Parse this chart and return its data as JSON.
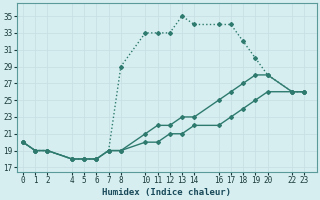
{
  "title": "",
  "xlabel": "Humidex (Indice chaleur)",
  "bg_color": "#d6eef0",
  "grid_color": "#c8e0e4",
  "line_color": "#2e7a6e",
  "xticks": [
    0,
    1,
    2,
    4,
    5,
    6,
    7,
    8,
    10,
    11,
    12,
    13,
    14,
    16,
    17,
    18,
    19,
    20,
    22,
    23
  ],
  "yticks": [
    17,
    19,
    21,
    23,
    25,
    27,
    29,
    31,
    33,
    35
  ],
  "xlim": [
    -0.5,
    24.0
  ],
  "ylim": [
    16.5,
    36.5
  ],
  "line1_x": [
    0,
    1,
    2,
    4,
    5,
    6,
    7,
    8,
    10,
    11,
    12,
    13,
    14,
    16,
    17,
    18,
    19,
    20,
    22,
    23
  ],
  "line1_y": [
    20,
    19,
    19,
    18,
    18,
    18,
    19,
    29,
    33,
    33,
    33,
    35,
    34,
    34,
    34,
    32,
    30,
    28,
    26,
    26
  ],
  "line2_x": [
    0,
    1,
    2,
    4,
    5,
    6,
    7,
    8,
    10,
    11,
    12,
    13,
    14,
    16,
    17,
    18,
    19,
    20,
    22,
    23
  ],
  "line2_y": [
    20,
    19,
    19,
    18,
    18,
    18,
    19,
    19,
    21,
    22,
    22,
    23,
    23,
    25,
    26,
    27,
    28,
    28,
    26,
    26
  ],
  "line3_x": [
    0,
    1,
    2,
    4,
    5,
    6,
    7,
    8,
    10,
    11,
    12,
    13,
    14,
    16,
    17,
    18,
    19,
    20,
    22,
    23
  ],
  "line3_y": [
    20,
    19,
    19,
    18,
    18,
    18,
    19,
    19,
    20,
    20,
    21,
    21,
    22,
    22,
    23,
    24,
    25,
    26,
    26,
    26
  ],
  "markersize": 2.0,
  "linewidth": 1.0
}
